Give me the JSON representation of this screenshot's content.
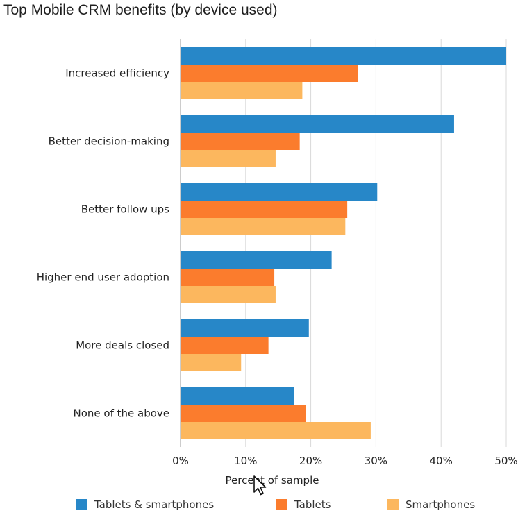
{
  "chart_data": {
    "type": "bar",
    "orientation": "horizontal",
    "title": "Top Mobile CRM benefits (by device used)",
    "xlabel": "Percent of sample",
    "ylabel": "",
    "xlim": [
      0,
      50
    ],
    "x_ticks": [
      "0%",
      "10%",
      "20%",
      "30%",
      "40%",
      "50%"
    ],
    "grid": true,
    "legend_position": "bottom",
    "categories": [
      "Increased efficiency",
      "Better decision-making",
      "Better follow ups",
      "Higher end user adoption",
      "More deals closed",
      "None of the above"
    ],
    "series": [
      {
        "name": "Tablets & smartphones",
        "color": "#2787c8",
        "values": [
          50,
          42,
          30.2,
          23.2,
          19.7,
          17.4
        ]
      },
      {
        "name": "Tablets",
        "color": "#fb7c2d",
        "values": [
          27.2,
          18.3,
          25.6,
          14.4,
          13.5,
          19.2
        ]
      },
      {
        "name": "Smartphones",
        "color": "#fcb75e",
        "values": [
          18.7,
          14.6,
          25.3,
          14.6,
          9.3,
          29.2
        ]
      }
    ]
  }
}
